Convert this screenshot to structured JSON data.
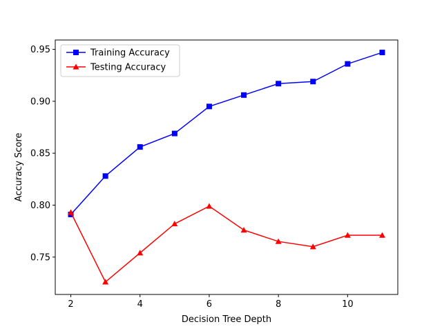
{
  "chart_data": {
    "type": "line",
    "title": "",
    "xlabel": "Decision Tree Depth",
    "ylabel": "Accuracy Score",
    "x": [
      2,
      3,
      4,
      5,
      6,
      7,
      8,
      9,
      10,
      11
    ],
    "xlim": [
      1.55,
      11.45
    ],
    "ylim": [
      0.714,
      0.959
    ],
    "xticks": [
      2,
      4,
      6,
      8,
      10
    ],
    "yticks": [
      0.75,
      0.8,
      0.85,
      0.9,
      0.95
    ],
    "ytick_labels": [
      "0.75",
      "0.80",
      "0.85",
      "0.90",
      "0.95"
    ],
    "grid": false,
    "legend_position": "top-left",
    "series": [
      {
        "name": "Training Accuracy",
        "color": "#0000ff",
        "marker": "square",
        "values": [
          0.791,
          0.828,
          0.856,
          0.869,
          0.895,
          0.906,
          0.917,
          0.919,
          0.936,
          0.947
        ]
      },
      {
        "name": "Testing Accuracy",
        "color": "#ff0000",
        "marker": "triangle",
        "values": [
          0.793,
          0.726,
          0.754,
          0.782,
          0.799,
          0.776,
          0.765,
          0.76,
          0.771,
          0.771
        ]
      }
    ]
  }
}
